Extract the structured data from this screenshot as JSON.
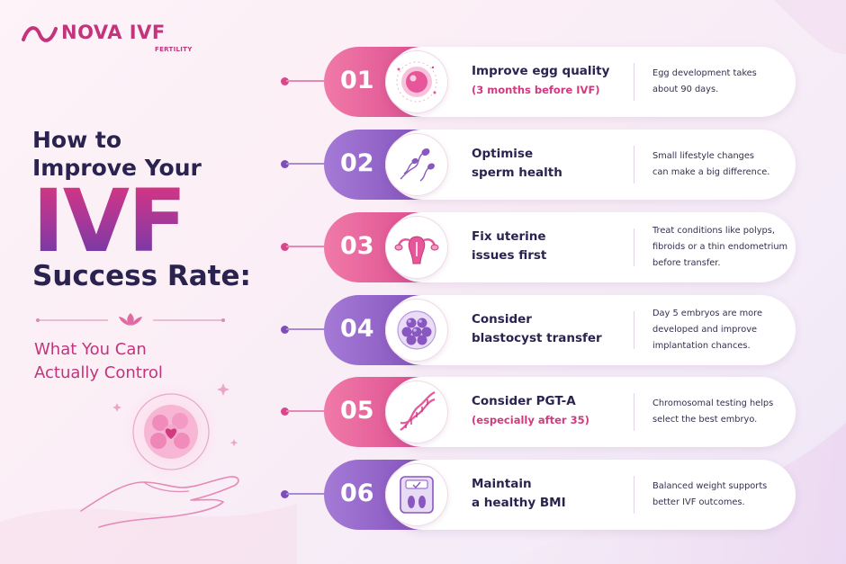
{
  "brand": {
    "name": "NOVA IVF",
    "tagline": "FERTILITY",
    "color": "#c2347c"
  },
  "headline": {
    "line1": "How to",
    "line2": "Improve Your",
    "highlight": "IVF",
    "line3": "Success Rate:",
    "sub1": "What You Can",
    "sub2": "Actually Control"
  },
  "colors": {
    "pink": "#e0538f",
    "purple": "#8a57c0",
    "navy": "#2a2350",
    "accent": "#d23a7f"
  },
  "steps": [
    {
      "number": "01",
      "icon": "egg-cell-icon",
      "theme": "pink",
      "title": [
        "Improve egg quality"
      ],
      "subtitle": "(3 months before IVF)",
      "description": [
        "Egg development takes",
        "about 90 days."
      ]
    },
    {
      "number": "02",
      "icon": "sperm-icon",
      "theme": "purple",
      "title": [
        "Optimise",
        "sperm health"
      ],
      "subtitle": "",
      "description": [
        "Small lifestyle changes",
        "can make a big difference."
      ]
    },
    {
      "number": "03",
      "icon": "uterus-icon",
      "theme": "pink",
      "title": [
        "Fix uterine",
        "issues first"
      ],
      "subtitle": "",
      "description": [
        "Treat conditions like polyps,",
        "fibroids or a thin endometrium",
        "before transfer."
      ]
    },
    {
      "number": "04",
      "icon": "blastocyst-icon",
      "theme": "purple",
      "title": [
        "Consider",
        "blastocyst transfer"
      ],
      "subtitle": "",
      "description": [
        "Day 5 embryos are more",
        "developed and improve",
        "implantation chances."
      ]
    },
    {
      "number": "05",
      "icon": "dna-icon",
      "theme": "pink",
      "title": [
        "Consider PGT-A"
      ],
      "subtitle": "(especially after 35)",
      "description": [
        "Chromosomal testing helps",
        "select the best embryo."
      ]
    },
    {
      "number": "06",
      "icon": "weighing-scale-icon",
      "theme": "purple",
      "title": [
        "Maintain",
        "a healthy BMI"
      ],
      "subtitle": "",
      "description": [
        "Balanced weight supports",
        "better IVF outcomes."
      ]
    }
  ]
}
